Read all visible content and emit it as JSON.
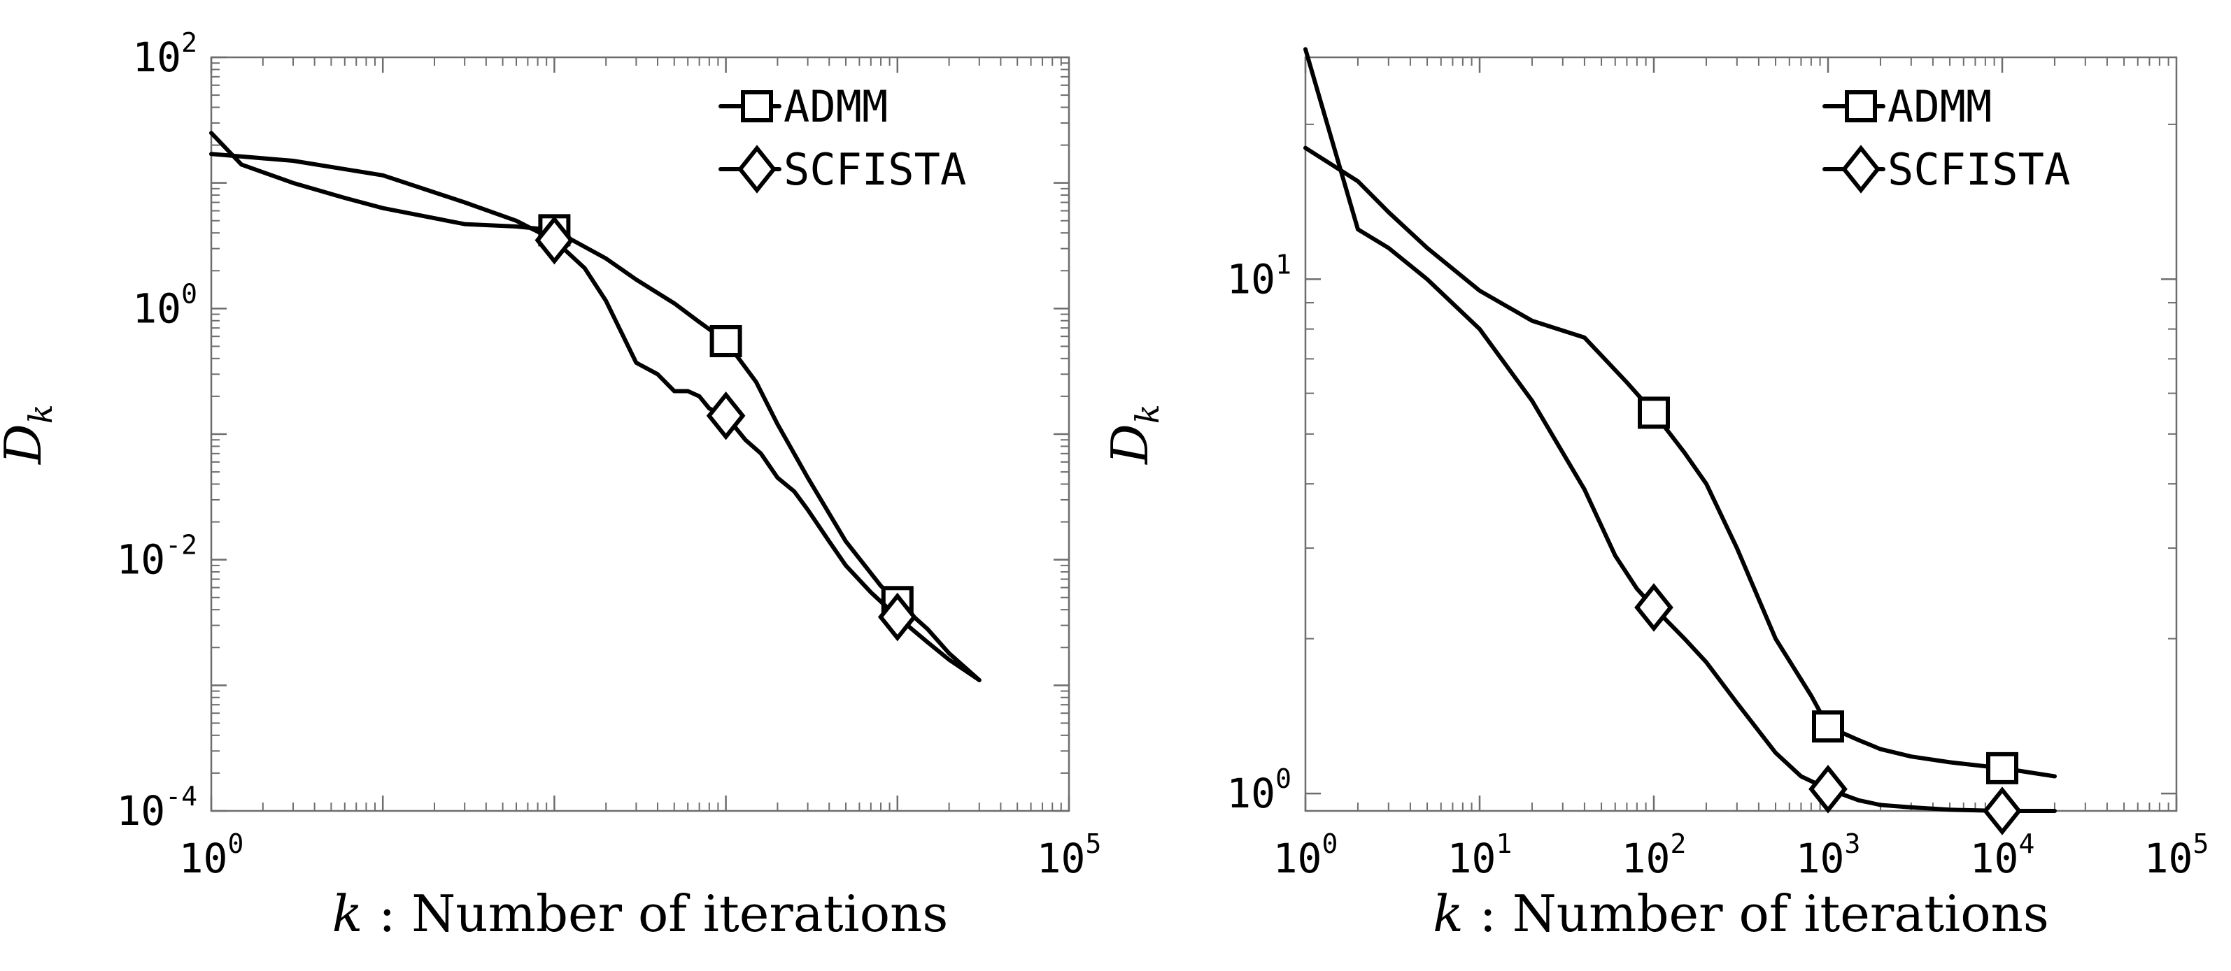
{
  "chart_data": [
    {
      "type": "line",
      "scale": "loglog",
      "title": "",
      "xlabel_var": "k",
      "xlabel_rest": " : Number of iterations",
      "ylabel_base": "D",
      "ylabel_sub": "k",
      "xlim": [
        1,
        100000
      ],
      "ylim": [
        0.0001,
        100
      ],
      "grid": false,
      "legend_position": "top-right",
      "x_ticks": [
        {
          "value": 1,
          "base": "10",
          "exp": "0"
        },
        {
          "value": 100000,
          "base": "10",
          "exp": "5"
        }
      ],
      "y_ticks": [
        {
          "value": 0.0001,
          "base": "10",
          "exp": "-4"
        },
        {
          "value": 0.01,
          "base": "10",
          "exp": "-2"
        },
        {
          "value": 1,
          "base": "10",
          "exp": "0"
        },
        {
          "value": 100,
          "base": "10",
          "exp": "2"
        }
      ],
      "series": [
        {
          "name": "ADMM",
          "marker": "square",
          "x": [
            1,
            1.5,
            3,
            6,
            10,
            30,
            60,
            100,
            200,
            300,
            500,
            700,
            1000,
            1500,
            2000,
            3000,
            5000,
            8000,
            10000,
            15000,
            20000,
            30000
          ],
          "y": [
            25,
            14,
            10,
            7.6,
            6.3,
            4.7,
            4.5,
            4.2,
            2.5,
            1.7,
            1.1,
            0.78,
            0.55,
            0.26,
            0.12,
            0.045,
            0.014,
            0.0062,
            0.0046,
            0.0028,
            0.0018,
            0.0011
          ],
          "marker_x": [
            100,
            1000,
            10000
          ]
        },
        {
          "name": "SCFISTA",
          "marker": "diamond",
          "x": [
            1,
            3,
            10,
            30,
            60,
            100,
            150,
            200,
            300,
            400,
            500,
            600,
            700,
            800,
            1000,
            1300,
            1600,
            2000,
            2500,
            3000,
            4000,
            5000,
            7000,
            10000,
            15000,
            20000,
            30000
          ],
          "y": [
            17,
            15,
            11.5,
            7,
            5,
            3.5,
            2.1,
            1.15,
            0.37,
            0.3,
            0.22,
            0.22,
            0.2,
            0.16,
            0.14,
            0.09,
            0.07,
            0.045,
            0.035,
            0.025,
            0.014,
            0.009,
            0.0055,
            0.0035,
            0.0022,
            0.0016,
            0.0011
          ],
          "marker_x": [
            100,
            1000,
            10000
          ]
        }
      ]
    },
    {
      "type": "line",
      "scale": "loglog",
      "title": "",
      "xlabel_var": "k",
      "xlabel_rest": " : Number of iterations",
      "ylabel_base": "D",
      "ylabel_sub": "k",
      "xlim": [
        1,
        100000
      ],
      "ylim": [
        0.925,
        27
      ],
      "grid": false,
      "legend_position": "top-right",
      "x_ticks": [
        {
          "value": 1,
          "base": "10",
          "exp": "0"
        },
        {
          "value": 10,
          "base": "10",
          "exp": "1"
        },
        {
          "value": 100,
          "base": "10",
          "exp": "2"
        },
        {
          "value": 1000,
          "base": "10",
          "exp": "3"
        },
        {
          "value": 10000,
          "base": "10",
          "exp": "4"
        },
        {
          "value": 100000,
          "base": "10",
          "exp": "5"
        }
      ],
      "y_ticks": [
        {
          "value": 1,
          "base": "10",
          "exp": "0"
        },
        {
          "value": 10,
          "base": "10",
          "exp": "1"
        }
      ],
      "series": [
        {
          "name": "ADMM",
          "marker": "square",
          "x": [
            1,
            2,
            3,
            5,
            10,
            20,
            40,
            70,
            100,
            150,
            200,
            300,
            500,
            800,
            1000,
            1500,
            2000,
            3000,
            5000,
            10000,
            20000
          ],
          "y": [
            18,
            15.5,
            13.5,
            11.5,
            9.5,
            8.3,
            7.7,
            6.3,
            5.5,
            4.6,
            4.0,
            3.0,
            2.0,
            1.55,
            1.35,
            1.27,
            1.22,
            1.18,
            1.15,
            1.12,
            1.08
          ],
          "marker_x": [
            100,
            1000,
            10000
          ]
        },
        {
          "name": "SCFISTA",
          "marker": "diamond",
          "x": [
            1,
            2,
            3,
            5,
            10,
            20,
            40,
            60,
            80,
            100,
            150,
            200,
            300,
            500,
            700,
            1000,
            1500,
            2000,
            3000,
            5000,
            10000,
            20000
          ],
          "y": [
            28,
            12.5,
            11.5,
            10,
            8,
            5.8,
            3.9,
            2.9,
            2.5,
            2.3,
            2.0,
            1.8,
            1.5,
            1.2,
            1.08,
            1.02,
            0.97,
            0.95,
            0.94,
            0.93,
            0.925,
            0.925
          ],
          "marker_x": [
            100,
            1000,
            10000
          ]
        }
      ]
    }
  ]
}
